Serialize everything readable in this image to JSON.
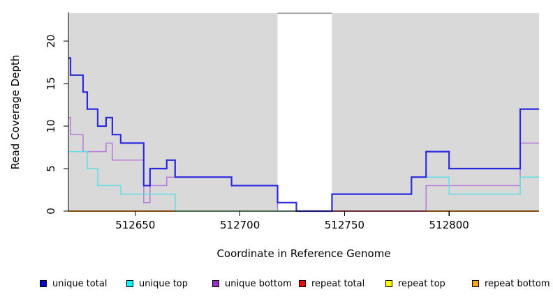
{
  "figure": {
    "kind": "read coverage depth plot"
  },
  "chart_data": {
    "type": "line",
    "subtype": "step",
    "title": "",
    "xlabel": "Coordinate in Reference Genome",
    "ylabel": "Read Coverage Depth",
    "xlim": [
      512618,
      512843
    ],
    "ylim": [
      0,
      23.3
    ],
    "xticks": [
      512650,
      512700,
      512750,
      512800
    ],
    "yticks": [
      0,
      5,
      10,
      15,
      20
    ],
    "grid": false,
    "background": {
      "shaded_color": "#d9d9d9",
      "shaded_regions": [
        [
          512618,
          512718
        ],
        [
          512744,
          512843
        ]
      ],
      "white_gap": [
        512718,
        512744
      ]
    },
    "series": [
      {
        "name": "unique total",
        "line_color": "#2a2ae0",
        "steps": [
          [
            512618,
            18
          ],
          [
            512619,
            16
          ],
          [
            512625,
            14
          ],
          [
            512627,
            12
          ],
          [
            512632,
            10
          ],
          [
            512636,
            11
          ],
          [
            512639,
            9
          ],
          [
            512643,
            8
          ],
          [
            512654,
            3
          ],
          [
            512657,
            5
          ],
          [
            512665,
            6
          ],
          [
            512669,
            4
          ],
          [
            512696,
            3
          ],
          [
            512718,
            1
          ],
          [
            512727,
            0
          ],
          [
            512744,
            2
          ],
          [
            512782,
            4
          ],
          [
            512789,
            7
          ],
          [
            512800,
            5
          ],
          [
            512834,
            12
          ]
        ]
      },
      {
        "name": "unique top",
        "line_color": "#5fe0e6",
        "steps": [
          [
            512618,
            7
          ],
          [
            512627,
            5
          ],
          [
            512632,
            3
          ],
          [
            512643,
            2
          ],
          [
            512669,
            0
          ],
          [
            512744,
            2
          ],
          [
            512782,
            4
          ],
          [
            512800,
            2
          ],
          [
            512834,
            4
          ]
        ]
      },
      {
        "name": "unique bottom",
        "line_color": "#b879d9",
        "steps": [
          [
            512618,
            11
          ],
          [
            512619,
            9
          ],
          [
            512625,
            7
          ],
          [
            512636,
            8
          ],
          [
            512639,
            6
          ],
          [
            512654,
            1
          ],
          [
            512657,
            3
          ],
          [
            512665,
            4
          ],
          [
            512696,
            3
          ],
          [
            512718,
            0
          ],
          [
            512789,
            3
          ],
          [
            512834,
            8
          ]
        ]
      },
      {
        "name": "repeat total",
        "line_color": "#d05060",
        "steps": [
          [
            512618,
            0
          ]
        ]
      },
      {
        "name": "repeat top",
        "line_color": "#f2e635",
        "steps": [
          [
            512618,
            0
          ]
        ]
      },
      {
        "name": "repeat bottom",
        "line_color": "#ff9d1e",
        "steps": [
          [
            512618,
            0
          ]
        ]
      }
    ],
    "baseline_visible_segments": [
      {
        "from": 512669,
        "to": 512727,
        "color": "#8fd6a2"
      },
      {
        "from": 512744,
        "to": 512789,
        "color": "#d05060"
      }
    ],
    "legend": {
      "position": "bottom",
      "items": [
        {
          "label": "unique total",
          "swatch_color": "#0000cd"
        },
        {
          "label": "unique top",
          "swatch_color": "#00ffff"
        },
        {
          "label": "unique bottom",
          "swatch_color": "#9932cc"
        },
        {
          "label": "repeat total",
          "swatch_color": "#ff0000"
        },
        {
          "label": "repeat top",
          "swatch_color": "#ffff00"
        },
        {
          "label": "repeat bottom",
          "swatch_color": "#ffa500"
        }
      ]
    }
  }
}
